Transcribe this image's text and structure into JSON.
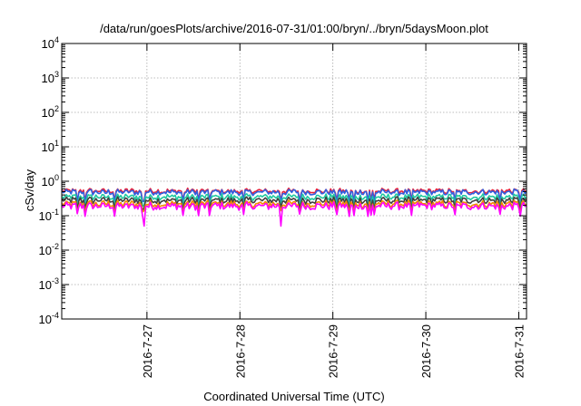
{
  "chart_data": {
    "type": "line",
    "title": "/data/run/goesPlots/archive/2016-07-31/01:00/bryn/../bryn/5daysMoon.plot",
    "xlabel": "Coordinated Universal Time (UTC)",
    "ylabel": "cSv/day",
    "yscale": "log",
    "ylim": [
      0.0001,
      10000
    ],
    "y_ticks": [
      {
        "base": "10",
        "exp": "-4"
      },
      {
        "base": "10",
        "exp": "-3"
      },
      {
        "base": "10",
        "exp": "-2"
      },
      {
        "base": "10",
        "exp": "-1"
      },
      {
        "base": "10",
        "exp": "0"
      },
      {
        "base": "10",
        "exp": "1"
      },
      {
        "base": "10",
        "exp": "2"
      },
      {
        "base": "10",
        "exp": "3"
      },
      {
        "base": "10",
        "exp": "4"
      }
    ],
    "xlim": [
      "2016-07-26 02:00",
      "2016-07-31 02:00"
    ],
    "x_ticks": [
      "2016-7-27",
      "2016-7-28",
      "2016-7-29",
      "2016-7-30",
      "2016-7-31"
    ],
    "grid": true,
    "legend": "none",
    "series": [
      {
        "color": "#e8203a",
        "typical": 0.52,
        "low": 0.27
      },
      {
        "color": "#3060e0",
        "typical": 0.48,
        "low": 0.26
      },
      {
        "color": "#20c8a0",
        "typical": 0.35,
        "low": 0.2
      },
      {
        "color": "#404040",
        "typical": 0.28,
        "low": 0.17
      },
      {
        "color": "#f08a00",
        "typical": 0.22,
        "low": 0.14
      },
      {
        "color": "#ff00ff",
        "typical": 0.19,
        "low": 0.05
      }
    ]
  }
}
